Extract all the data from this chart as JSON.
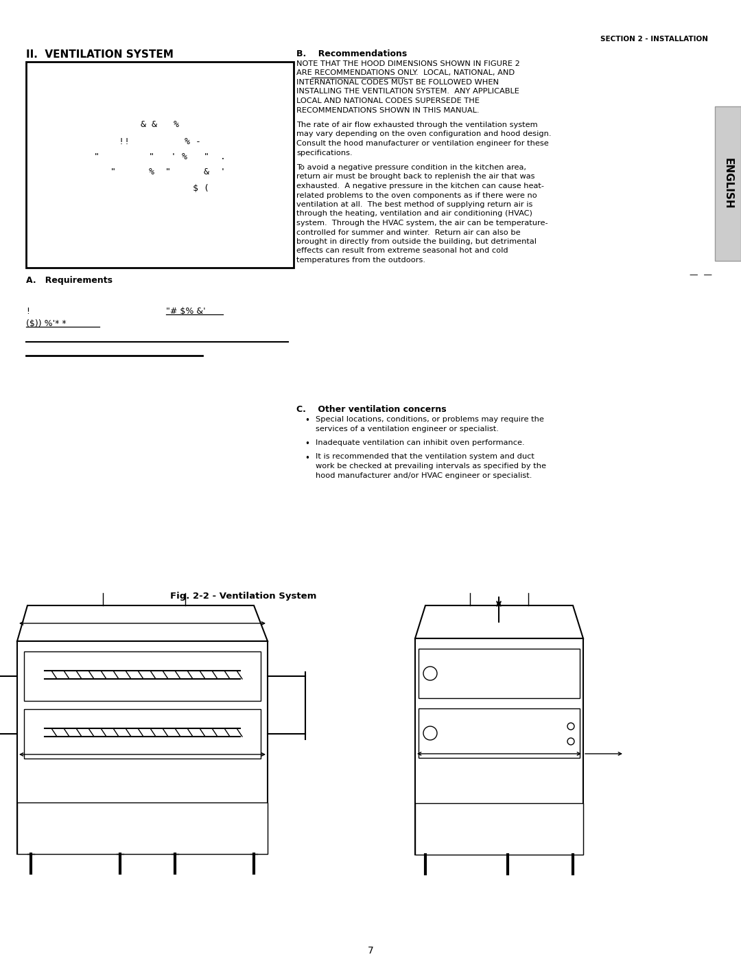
{
  "page_number": "7",
  "section_header": "SECTION 2 - INSTALLATION",
  "main_title": "II.  VENTILATION SYSTEM",
  "english_tab": "ENGLISH",
  "fig_caption": "Fig. 2-2 - Ventilation System",
  "section_a_title": "A.   Requirements",
  "section_b_title": "B.    Recommendations",
  "section_c_title": "C.    Other ventilation concerns",
  "box_lines": [
    "& &   %",
    "!!          % -",
    "\"         \"   ' %   \"  .",
    "   \"      %  \"      &  '",
    "               $ ("
  ],
  "req_line1_left": "!",
  "req_line1_right": "\"# $% &'",
  "req_line2": "($)) %'* *",
  "rec_para1_lines": [
    "NOTE THAT THE HOOD DIMENSIONS SHOWN IN FIGURE 2",
    "ARE RECOMMENDATIONS ONLY.  LOCAL, NATIONAL, AND",
    "INTERNATIONAL CODES MUST BE FOLLOWED WHEN",
    "INSTALLING THE VENTILATION SYSTEM.  ANY APPLICABLE",
    "LOCAL AND NATIONAL CODES SUPERSEDE THE",
    "RECOMMENDATIONS SHOWN IN THIS MANUAL."
  ],
  "rec_para2_lines": [
    "The rate of air flow exhausted through the ventilation system",
    "may vary depending on the oven configuration and hood design.",
    "Consult the hood manufacturer or ventilation engineer for these",
    "specifications."
  ],
  "rec_para3_lines": [
    "To avoid a negative pressure condition in the kitchen area,",
    "return air must be brought back to replenish the air that was",
    "exhausted.  A negative pressure in the kitchen can cause heat-",
    "related problems to the oven components as if there were no",
    "ventilation at all.  The best method of supplying return air is",
    "through the heating, ventilation and air conditioning (HVAC)",
    "system.  Through the HVAC system, the air can be temperature-",
    "controlled for summer and winter.  Return air can also be",
    "brought in directly from outside the building, but detrimental",
    "effects can result from extreme seasonal hot and cold",
    "temperatures from the outdoors."
  ],
  "other_bullets": [
    [
      "Special locations, conditions, or problems may require the",
      "services of a ventilation engineer or specialist."
    ],
    [
      "Inadequate ventilation can inhibit oven performance."
    ],
    [
      "It is recommended that the ventilation system and duct",
      "work be checked at prevailing intervals as specified by the",
      "hood manufacturer and/or HVAC engineer or specialist."
    ]
  ],
  "bg_color": "#ffffff",
  "text_color": "#000000",
  "english_tab_bg": "#cccccc"
}
